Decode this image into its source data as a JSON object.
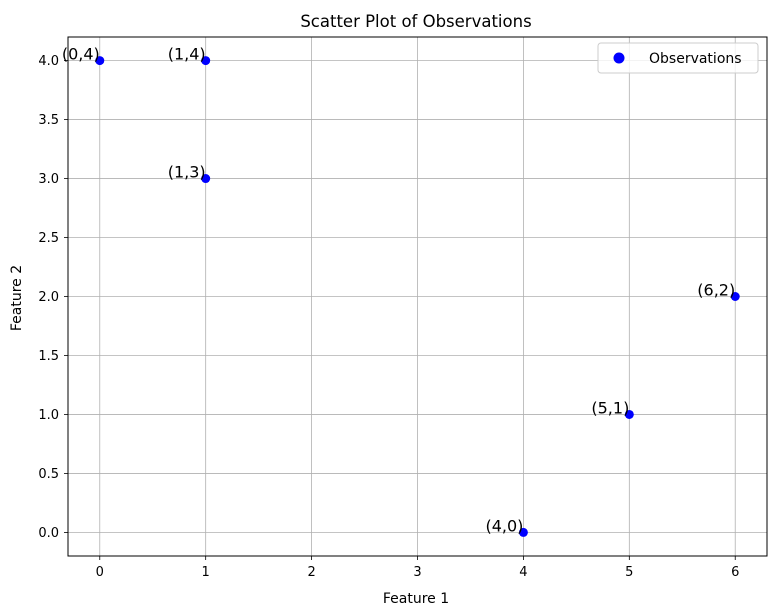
{
  "chart_data": {
    "type": "scatter",
    "title": "Scatter Plot of Observations",
    "xlabel": "Feature 1",
    "ylabel": "Feature 2",
    "xlim": [
      -0.3,
      6.3
    ],
    "ylim": [
      -0.2,
      4.2
    ],
    "xticks": [
      0,
      1,
      2,
      3,
      4,
      5,
      6
    ],
    "yticks": [
      0.0,
      0.5,
      1.0,
      1.5,
      2.0,
      2.5,
      3.0,
      3.5,
      4.0
    ],
    "xtick_labels": [
      "0",
      "1",
      "2",
      "3",
      "4",
      "5",
      "6"
    ],
    "ytick_labels": [
      "0.0",
      "0.5",
      "1.0",
      "1.5",
      "2.0",
      "2.5",
      "3.0",
      "3.5",
      "4.0"
    ],
    "grid": true,
    "legend_position": "top-right",
    "series": [
      {
        "name": "Observations",
        "color": "#0000ff",
        "points": [
          {
            "x": 0,
            "y": 4,
            "label": "(0,4)"
          },
          {
            "x": 1,
            "y": 4,
            "label": "(1,4)"
          },
          {
            "x": 1,
            "y": 3,
            "label": "(1,3)"
          },
          {
            "x": 6,
            "y": 2,
            "label": "(6,2)"
          },
          {
            "x": 5,
            "y": 1,
            "label": "(5,1)"
          },
          {
            "x": 4,
            "y": 0,
            "label": "(4,0)"
          }
        ]
      }
    ]
  }
}
